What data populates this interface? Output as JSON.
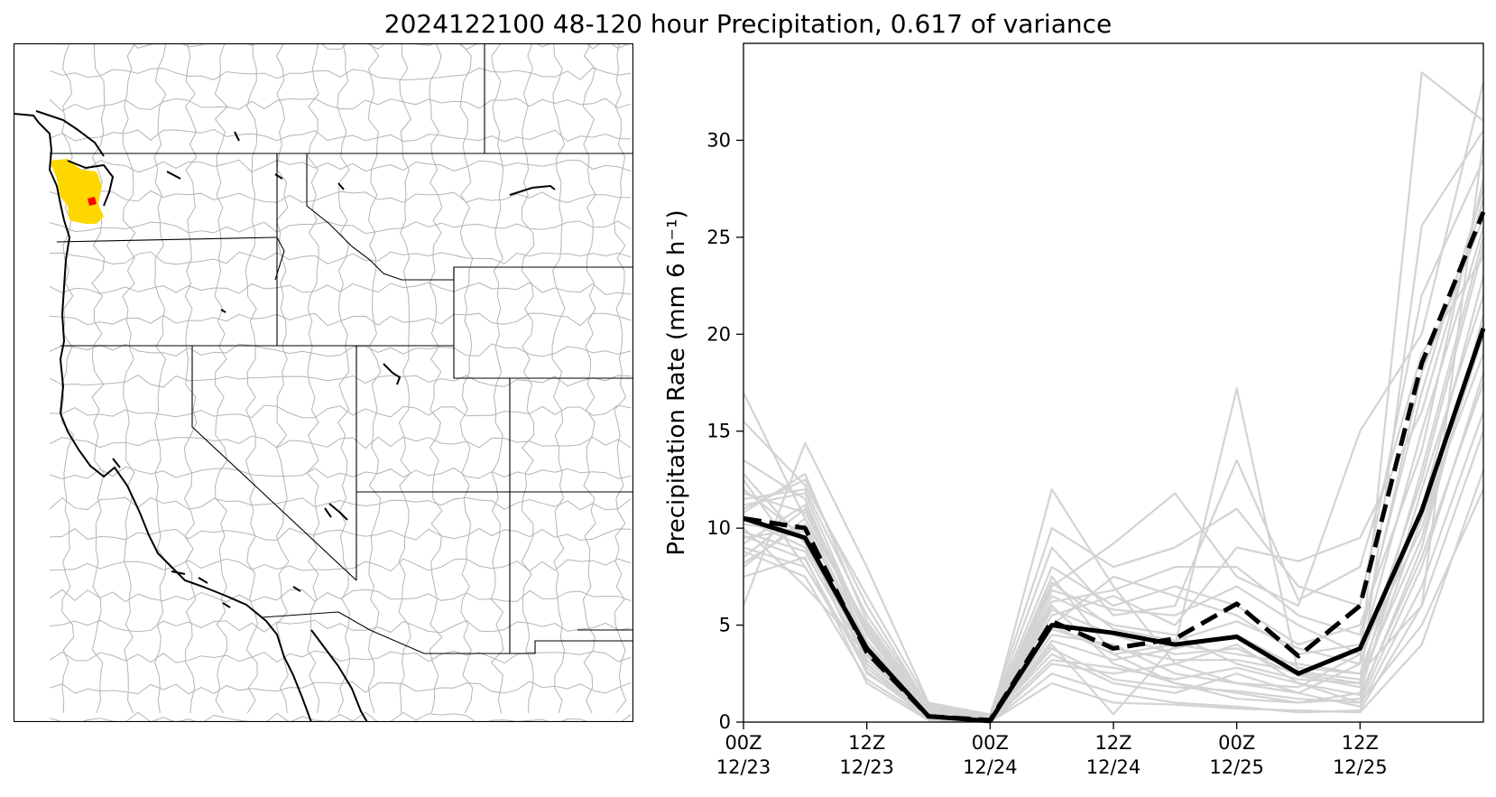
{
  "figure": {
    "title": "2024122100 48-120 hour Precipitation, 0.617 of variance"
  },
  "map": {
    "type": "map",
    "highlight_color": "#ffd700",
    "point_color": "#ff0000",
    "basin_line_color": "#b0b0b0",
    "coast_color": "#000000"
  },
  "chart_data": {
    "type": "line",
    "title": "",
    "ylabel": "Precipitation Rate (mm 6 h⁻¹)",
    "xlabel": "",
    "ylim": [
      0,
      35
    ],
    "xlim": [
      0,
      12
    ],
    "yticks": [
      0,
      5,
      10,
      15,
      20,
      25,
      30
    ],
    "x_ticks": [
      {
        "x": 0,
        "line1": "00Z",
        "line2": "12/23"
      },
      {
        "x": 2,
        "line1": "12Z",
        "line2": "12/23"
      },
      {
        "x": 4,
        "line1": "00Z",
        "line2": "12/24"
      },
      {
        "x": 6,
        "line1": "12Z",
        "line2": "12/24"
      },
      {
        "x": 8,
        "line1": "00Z",
        "line2": "12/25"
      },
      {
        "x": 10,
        "line1": "12Z",
        "line2": "12/25"
      }
    ],
    "x": [
      0,
      1,
      2,
      3,
      4,
      5,
      6,
      7,
      8,
      9,
      10,
      11,
      12
    ],
    "series": [
      {
        "style": "ensemble-member",
        "color": "#d3d3d3",
        "values": [
          17.0,
          10.5,
          5.0,
          0.3,
          0.0,
          5.0,
          3.5,
          4.0,
          3.5,
          3.0,
          2.5,
          6.0,
          30.0
        ]
      },
      {
        "style": "ensemble-member",
        "color": "#d3d3d3",
        "values": [
          6.0,
          14.4,
          8.0,
          1.0,
          0.1,
          12.0,
          7.0,
          3.0,
          2.0,
          1.5,
          3.0,
          33.5,
          31.0
        ]
      },
      {
        "style": "ensemble-member",
        "color": "#d3d3d3",
        "values": [
          11.0,
          12.5,
          6.0,
          0.8,
          0.2,
          7.0,
          9.2,
          11.8,
          7.5,
          6.0,
          15.0,
          20.0,
          33.0
        ]
      },
      {
        "style": "ensemble-member",
        "color": "#d3d3d3",
        "values": [
          9.0,
          8.0,
          3.0,
          0.2,
          0.0,
          4.0,
          0.4,
          4.0,
          17.2,
          2.5,
          2.0,
          25.6,
          30.5
        ]
      },
      {
        "style": "ensemble-member",
        "color": "#d3d3d3",
        "values": [
          12.0,
          9.5,
          2.5,
          0.5,
          0.3,
          9.0,
          5.5,
          6.0,
          13.5,
          6.3,
          8.0,
          19.0,
          24.0
        ]
      },
      {
        "style": "ensemble-member",
        "color": "#d3d3d3",
        "values": [
          8.5,
          11.0,
          4.5,
          0.4,
          0.1,
          6.0,
          3.0,
          2.0,
          1.5,
          1.0,
          1.5,
          12.0,
          22.0
        ]
      },
      {
        "style": "ensemble-member",
        "color": "#d3d3d3",
        "values": [
          10.0,
          7.0,
          3.5,
          0.2,
          0.0,
          3.0,
          2.5,
          3.0,
          4.0,
          2.0,
          1.0,
          8.0,
          18.0
        ]
      },
      {
        "style": "ensemble-member",
        "color": "#d3d3d3",
        "values": [
          13.5,
          11.5,
          4.0,
          0.6,
          0.2,
          5.5,
          6.5,
          5.0,
          9.0,
          8.3,
          9.5,
          16.0,
          27.0
        ]
      },
      {
        "style": "ensemble-member",
        "color": "#d3d3d3",
        "values": [
          9.5,
          10.0,
          3.0,
          0.3,
          0.1,
          4.5,
          4.0,
          2.5,
          2.0,
          1.8,
          3.5,
          10.0,
          20.0
        ]
      },
      {
        "style": "ensemble-member",
        "color": "#d3d3d3",
        "values": [
          7.5,
          8.5,
          2.0,
          0.1,
          0.0,
          2.5,
          1.5,
          1.0,
          0.8,
          0.5,
          0.6,
          6.0,
          15.0
        ]
      },
      {
        "style": "ensemble-member",
        "color": "#d3d3d3",
        "values": [
          11.5,
          12.0,
          5.5,
          0.9,
          0.3,
          8.0,
          6.0,
          7.0,
          6.0,
          4.0,
          5.0,
          14.0,
          28.0
        ]
      },
      {
        "style": "ensemble-member",
        "color": "#d3d3d3",
        "values": [
          10.5,
          9.0,
          3.8,
          0.4,
          0.1,
          6.5,
          5.0,
          4.5,
          3.0,
          2.2,
          2.0,
          13.0,
          25.0
        ]
      },
      {
        "style": "ensemble-member",
        "color": "#d3d3d3",
        "values": [
          8.0,
          10.5,
          4.2,
          0.5,
          0.2,
          7.5,
          3.5,
          2.0,
          1.2,
          1.0,
          1.2,
          9.0,
          21.0
        ]
      },
      {
        "style": "ensemble-member",
        "color": "#d3d3d3",
        "values": [
          12.5,
          8.0,
          2.8,
          0.2,
          0.1,
          5.0,
          7.5,
          6.5,
          5.5,
          3.5,
          4.0,
          18.0,
          26.0
        ]
      },
      {
        "style": "ensemble-member",
        "color": "#d3d3d3",
        "values": [
          9.2,
          11.2,
          4.8,
          0.6,
          0.2,
          3.5,
          2.0,
          1.5,
          2.5,
          1.5,
          0.8,
          7.0,
          16.0
        ]
      },
      {
        "style": "ensemble-member",
        "color": "#d3d3d3",
        "values": [
          15.5,
          12.2,
          6.5,
          1.0,
          0.4,
          10.0,
          8.0,
          9.0,
          11.0,
          7.0,
          6.0,
          22.0,
          29.0
        ]
      },
      {
        "style": "ensemble-member",
        "color": "#d3d3d3",
        "values": [
          10.2,
          9.8,
          3.6,
          0.3,
          0.1,
          4.2,
          3.2,
          3.8,
          4.5,
          2.8,
          2.5,
          11.0,
          23.0
        ]
      },
      {
        "style": "ensemble-member",
        "color": "#d3d3d3",
        "values": [
          8.8,
          7.5,
          2.2,
          0.2,
          0.0,
          2.0,
          1.0,
          0.9,
          0.7,
          0.6,
          0.5,
          4.0,
          13.0
        ]
      },
      {
        "style": "ensemble-member",
        "color": "#d3d3d3",
        "values": [
          11.8,
          10.8,
          5.0,
          0.7,
          0.2,
          6.8,
          5.8,
          5.5,
          7.0,
          5.0,
          3.5,
          15.0,
          25.5
        ]
      },
      {
        "style": "ensemble-member",
        "color": "#d3d3d3",
        "values": [
          9.8,
          8.8,
          3.2,
          0.4,
          0.1,
          5.8,
          4.5,
          3.5,
          3.8,
          2.4,
          1.8,
          10.5,
          19.0
        ]
      },
      {
        "style": "ensemble-member",
        "color": "#d3d3d3",
        "values": [
          10.8,
          12.8,
          5.2,
          0.8,
          0.3,
          7.2,
          4.8,
          4.2,
          5.2,
          3.8,
          3.0,
          12.5,
          24.5
        ]
      },
      {
        "style": "ensemble-member",
        "color": "#d3d3d3",
        "values": [
          12.8,
          9.2,
          3.4,
          0.3,
          0.1,
          3.2,
          2.8,
          2.2,
          2.8,
          2.0,
          1.4,
          8.5,
          17.5
        ]
      },
      {
        "style": "ensemble-member",
        "color": "#d3d3d3",
        "values": [
          8.2,
          10.2,
          4.0,
          0.5,
          0.2,
          6.2,
          6.8,
          8.0,
          8.0,
          5.5,
          4.5,
          17.0,
          27.5
        ]
      },
      {
        "style": "ensemble-member",
        "color": "#d3d3d3",
        "values": [
          11.2,
          11.8,
          4.6,
          0.6,
          0.2,
          4.8,
          3.8,
          3.2,
          3.2,
          2.6,
          2.2,
          9.5,
          20.5
        ]
      },
      {
        "style": "ensemble-member",
        "color": "#d3d3d3",
        "values": [
          9.6,
          8.4,
          2.6,
          0.2,
          0.1,
          3.8,
          2.2,
          1.8,
          1.6,
          1.2,
          1.0,
          5.0,
          12.0
        ]
      },
      {
        "style": "ensemble-mean",
        "color": "#000000",
        "dash": true,
        "values": [
          10.5,
          10.0,
          3.6,
          0.3,
          0.1,
          5.2,
          3.8,
          4.3,
          6.1,
          3.4,
          6.0,
          18.5,
          26.3
        ]
      },
      {
        "style": "analysis",
        "color": "#000000",
        "dash": false,
        "values": [
          10.5,
          9.5,
          3.8,
          0.3,
          0.05,
          5.0,
          4.6,
          4.0,
          4.4,
          2.5,
          3.8,
          10.9,
          20.3
        ]
      }
    ]
  }
}
